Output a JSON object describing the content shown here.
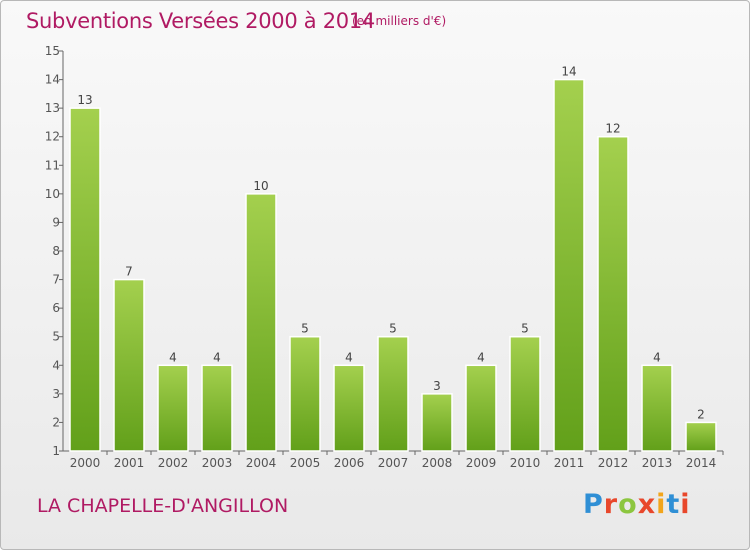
{
  "header": {
    "title": "Subventions Versées 2000 à 2014",
    "unit": "(en milliers d'€)"
  },
  "footer": {
    "commune": "LA CHAPELLE-D'ANGILLON",
    "brand": "Proxiti",
    "brand_colors": [
      "#2f8fd5",
      "#e8472b",
      "#8cc63f",
      "#e8472b",
      "#f2a51b",
      "#2f8fd5",
      "#e8472b"
    ]
  },
  "colors": {
    "title": "#b01a63",
    "bar_light": "#a4d04e",
    "bar_dark": "#62a01a",
    "axis": "#666666"
  },
  "chart_data": {
    "type": "bar",
    "title": "Subventions Versées 2000 à 2014",
    "xlabel": "",
    "ylabel": "",
    "categories": [
      "2000",
      "2001",
      "2002",
      "2003",
      "2004",
      "2005",
      "2006",
      "2007",
      "2008",
      "2009",
      "2010",
      "2011",
      "2012",
      "2013",
      "2014"
    ],
    "values": [
      13,
      7,
      4,
      4,
      10,
      5,
      4,
      5,
      3,
      4,
      5,
      14,
      12,
      4,
      2
    ],
    "ylim": [
      1,
      15
    ],
    "yticks": [
      1,
      2,
      3,
      4,
      5,
      6,
      7,
      8,
      9,
      10,
      11,
      12,
      13,
      14,
      15
    ],
    "grid": false,
    "data_labels": true,
    "legend": "none"
  }
}
